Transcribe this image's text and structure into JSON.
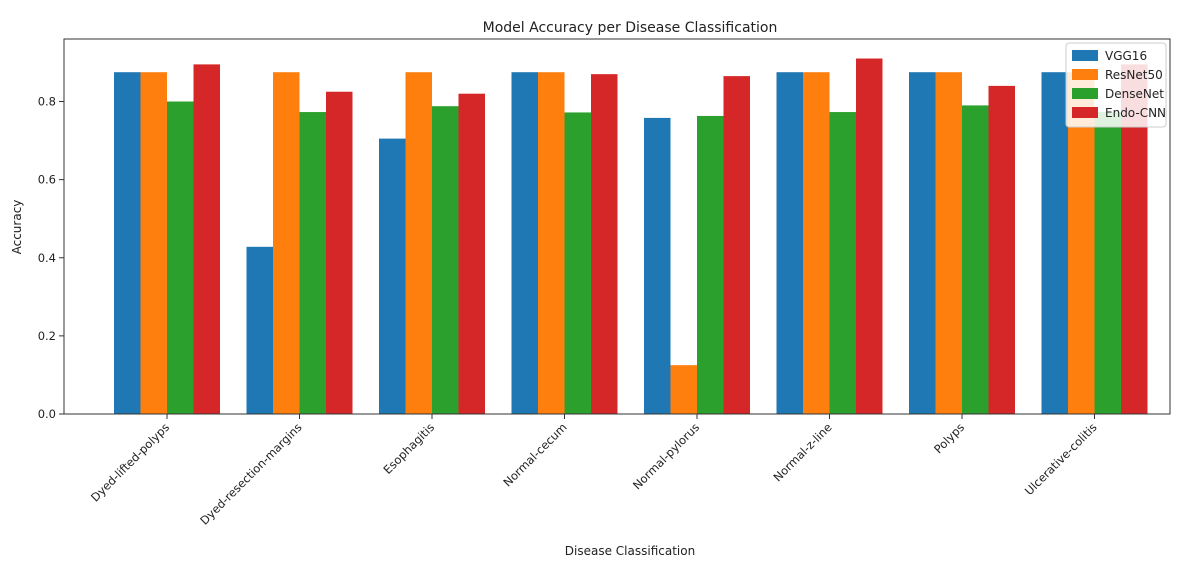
{
  "chart_data": {
    "type": "bar",
    "title": "Model Accuracy per Disease Classification",
    "xlabel": "Disease Classification",
    "ylabel": "Accuracy",
    "ylim": [
      0,
      0.96
    ],
    "yticks": [
      "0.0",
      "0.2",
      "0.4",
      "0.6",
      "0.8"
    ],
    "categories": [
      "Dyed-lifted-polyps",
      "Dyed-resection-margins",
      "Esophagitis",
      "Normal-cecum",
      "Normal-pylorus",
      "Normal-z-line",
      "Polyps",
      "Ulcerative-colitis"
    ],
    "series": [
      {
        "name": "VGG16",
        "color": "#1f77b4",
        "values": [
          0.875,
          0.428,
          0.705,
          0.875,
          0.758,
          0.875,
          0.875,
          0.875
        ]
      },
      {
        "name": "ResNet50",
        "color": "#ff7f0e",
        "values": [
          0.875,
          0.875,
          0.875,
          0.875,
          0.125,
          0.875,
          0.875,
          0.875
        ]
      },
      {
        "name": "DenseNet",
        "color": "#2ca02c",
        "values": [
          0.8,
          0.773,
          0.788,
          0.772,
          0.763,
          0.773,
          0.79,
          0.773
        ]
      },
      {
        "name": "Endo-CNN",
        "color": "#d62728",
        "values": [
          0.895,
          0.825,
          0.82,
          0.87,
          0.865,
          0.91,
          0.84,
          0.895
        ]
      }
    ],
    "legend": "top-right",
    "grid": false
  }
}
